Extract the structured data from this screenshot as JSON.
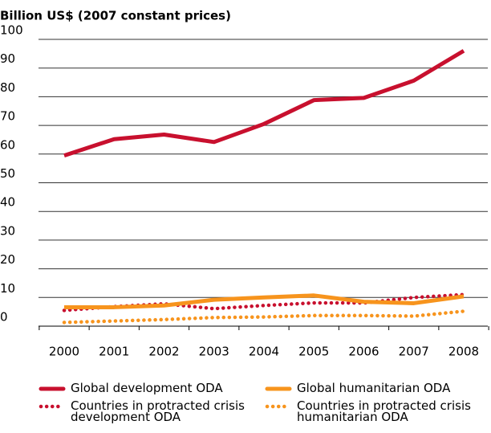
{
  "chart_data": {
    "type": "line",
    "title": "Billion US$ (2007 constant prices)",
    "categories": [
      "2000",
      "2001",
      "2002",
      "2003",
      "2004",
      "2005",
      "2006",
      "2007",
      "2008"
    ],
    "series": [
      {
        "name": "Global development ODA",
        "color": "#c8102e",
        "dashed": false,
        "values": [
          59.5,
          65.2,
          66.8,
          64.2,
          70.5,
          78.8,
          79.6,
          85.6,
          96.0
        ]
      },
      {
        "name": "Global humanitarian ODA",
        "color": "#f7941d",
        "dashed": false,
        "values": [
          6.6,
          6.6,
          7.2,
          9.2,
          10.0,
          10.7,
          8.5,
          8.0,
          10.4
        ]
      },
      {
        "name": "Countries in protracted crisis development ODA",
        "color": "#c8102e",
        "dashed": true,
        "values": [
          5.5,
          6.8,
          7.8,
          6.1,
          7.2,
          8.1,
          8.1,
          10.0,
          11.0
        ]
      },
      {
        "name": "Countries in protracted crisis humanitarian ODA",
        "color": "#f7941d",
        "dashed": true,
        "values": [
          1.3,
          1.8,
          2.3,
          3.0,
          3.2,
          3.7,
          3.7,
          3.5,
          5.2
        ]
      }
    ],
    "ylim": [
      0,
      100
    ],
    "yticks": [
      0,
      10,
      20,
      30,
      40,
      50,
      60,
      70,
      80,
      90,
      100
    ],
    "grid": true
  }
}
